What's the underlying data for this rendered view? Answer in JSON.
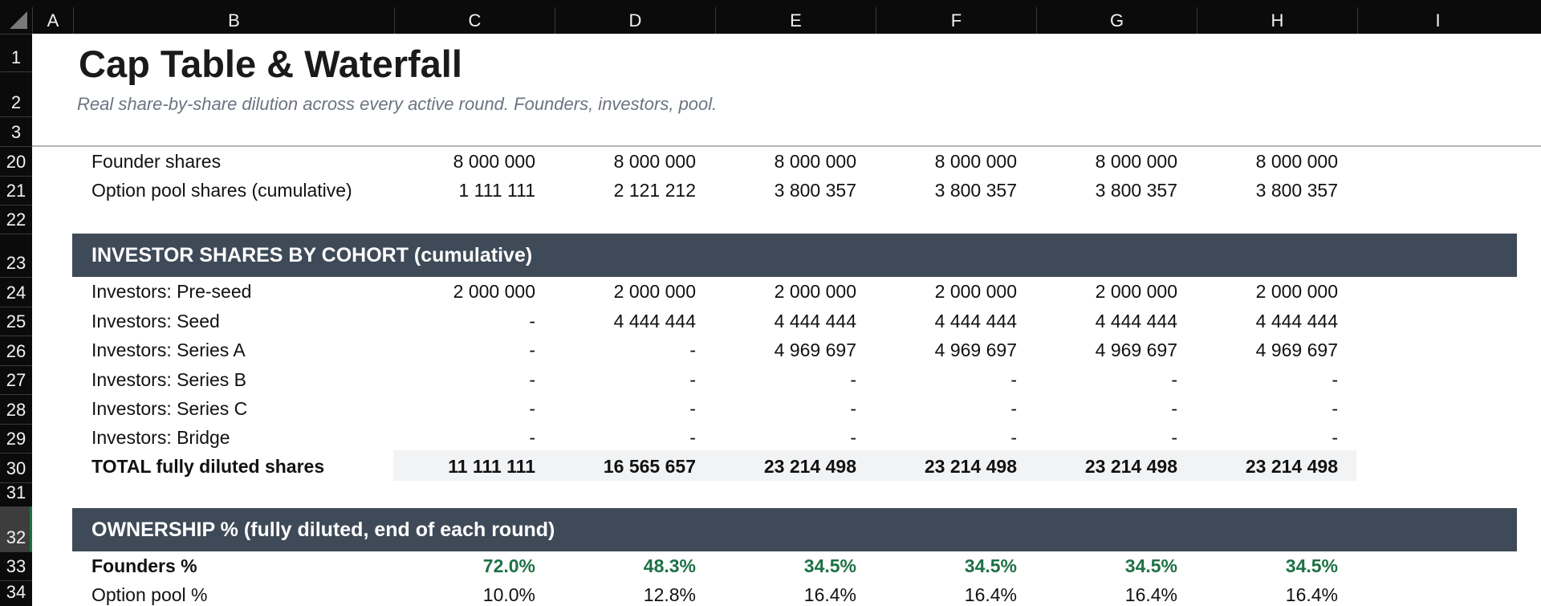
{
  "columns": [
    "A",
    "B",
    "C",
    "D",
    "E",
    "F",
    "G",
    "H",
    "I"
  ],
  "title": "Cap Table & Waterfall",
  "subtitle": "Real share-by-share dilution across every active round. Founders, investors, pool.",
  "row_numbers": [
    "1",
    "2",
    "3",
    "20",
    "21",
    "22",
    "23",
    "24",
    "25",
    "26",
    "27",
    "28",
    "29",
    "30",
    "31",
    "32",
    "33",
    "34"
  ],
  "founder_rows": [
    {
      "label": "Founder shares",
      "values": [
        "8 000 000",
        "8 000 000",
        "8 000 000",
        "8 000 000",
        "8 000 000",
        "8 000 000"
      ]
    },
    {
      "label": "Option pool shares (cumulative)",
      "values": [
        "1 111 111",
        "2 121 212",
        "3 800 357",
        "3 800 357",
        "3 800 357",
        "3 800 357"
      ]
    }
  ],
  "investor_section": {
    "title": "INVESTOR SHARES BY COHORT  (cumulative)",
    "rows": [
      {
        "label": "Investors: Pre-seed",
        "values": [
          "2 000 000",
          "2 000 000",
          "2 000 000",
          "2 000 000",
          "2 000 000",
          "2 000 000"
        ]
      },
      {
        "label": "Investors: Seed",
        "values": [
          "-",
          "4 444 444",
          "4 444 444",
          "4 444 444",
          "4 444 444",
          "4 444 444"
        ]
      },
      {
        "label": "Investors: Series A",
        "values": [
          "-",
          "-",
          "4 969 697",
          "4 969 697",
          "4 969 697",
          "4 969 697"
        ]
      },
      {
        "label": "Investors: Series B",
        "values": [
          "-",
          "-",
          "-",
          "-",
          "-",
          "-"
        ]
      },
      {
        "label": "Investors: Series C",
        "values": [
          "-",
          "-",
          "-",
          "-",
          "-",
          "-"
        ]
      },
      {
        "label": "Investors: Bridge",
        "values": [
          "-",
          "-",
          "-",
          "-",
          "-",
          "-"
        ]
      }
    ],
    "total": {
      "label": "TOTAL fully diluted shares",
      "values": [
        "11 111 111",
        "16 565 657",
        "23 214 498",
        "23 214 498",
        "23 214 498",
        "23 214 498"
      ]
    }
  },
  "ownership_section": {
    "title": "OWNERSHIP %  (fully diluted, end of each round)",
    "rows": [
      {
        "label": "Founders %",
        "values": [
          "72.0%",
          "48.3%",
          "34.5%",
          "34.5%",
          "34.5%",
          "34.5%"
        ]
      },
      {
        "label": "Option pool %",
        "values": [
          "10.0%",
          "12.8%",
          "16.4%",
          "16.4%",
          "16.4%",
          "16.4%"
        ]
      }
    ]
  },
  "colors": {
    "band_bg": "#3e4a57",
    "founders_pct": "#1e7145",
    "header_bg": "#0b0b0b",
    "total_bg": "#f2f3f5"
  },
  "selected_row": "32"
}
